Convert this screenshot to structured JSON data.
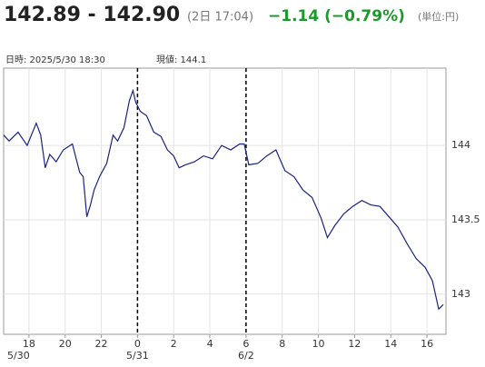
{
  "header": {
    "price": "142.89 - 142.90",
    "time": "(2日 17:04)",
    "change": "−1.14 (−0.79%)",
    "unit": "(単位:円)"
  },
  "info": {
    "datetime": "日時: 2025/5/30  18:30",
    "current": "現値: 144.1"
  },
  "chart_data": {
    "type": "line",
    "color": "#1a237e",
    "grid": true,
    "x": [
      16.6,
      16.9,
      17.4,
      17.9,
      18.4,
      18.65,
      18.9,
      19.15,
      19.5,
      19.9,
      20.4,
      20.8,
      21.0,
      21.2,
      21.4,
      21.6,
      21.9,
      22.3,
      22.65,
      22.9,
      23.25,
      23.55,
      23.75,
      23.9,
      24.15,
      24.5,
      24.9,
      25.3,
      25.65,
      26.0,
      26.3,
      26.65,
      27.15,
      27.65,
      28.15,
      28.65,
      29.15,
      29.65,
      29.9,
      30.15,
      30.65,
      31.15,
      31.65,
      32.15,
      32.65,
      33.15,
      33.65,
      34.15,
      34.5,
      34.9,
      35.4,
      35.9,
      36.4,
      36.9,
      37.4,
      37.9,
      38.4,
      38.9,
      39.4,
      39.9,
      40.3,
      40.65,
      40.9
    ],
    "series": [
      {
        "values": [
          144.07,
          144.03,
          144.09,
          144.0,
          144.15,
          144.07,
          143.85,
          143.94,
          143.89,
          143.97,
          144.01,
          143.82,
          143.79,
          143.52,
          143.6,
          143.7,
          143.79,
          143.88,
          144.07,
          144.03,
          144.12,
          144.3,
          144.37,
          144.29,
          144.23,
          144.2,
          144.09,
          144.06,
          143.97,
          143.93,
          143.85,
          143.87,
          143.89,
          143.93,
          143.91,
          144.0,
          143.97,
          144.01,
          144.01,
          143.87,
          143.88,
          143.93,
          143.97,
          143.83,
          143.79,
          143.7,
          143.65,
          143.51,
          143.38,
          143.46,
          143.54,
          143.59,
          143.63,
          143.6,
          143.59,
          143.52,
          143.45,
          143.34,
          143.24,
          143.18,
          143.09,
          142.9,
          142.93
        ]
      }
    ],
    "xlim": [
      16.6,
      41.05
    ],
    "xticks": [
      18,
      20,
      22,
      {
        "value": 24,
        "label": "0"
      },
      {
        "value": 26,
        "label": "2"
      },
      {
        "value": 28,
        "label": "4"
      },
      {
        "value": 30,
        "label": "6"
      },
      {
        "value": 32,
        "label": "8"
      },
      {
        "value": 34,
        "label": "10"
      },
      {
        "value": 36,
        "label": "12"
      },
      {
        "value": 38,
        "label": "14"
      },
      {
        "value": 40,
        "label": "16"
      }
    ],
    "date_labels": [
      {
        "value": 16.6,
        "label": "5/30"
      },
      {
        "value": 24,
        "label": "5/31"
      },
      {
        "value": 30,
        "label": "6/2"
      }
    ],
    "dividers": [
      24,
      30
    ],
    "ylim": [
      142.73,
      144.52
    ],
    "yticks": [
      143,
      143.5,
      144
    ]
  }
}
